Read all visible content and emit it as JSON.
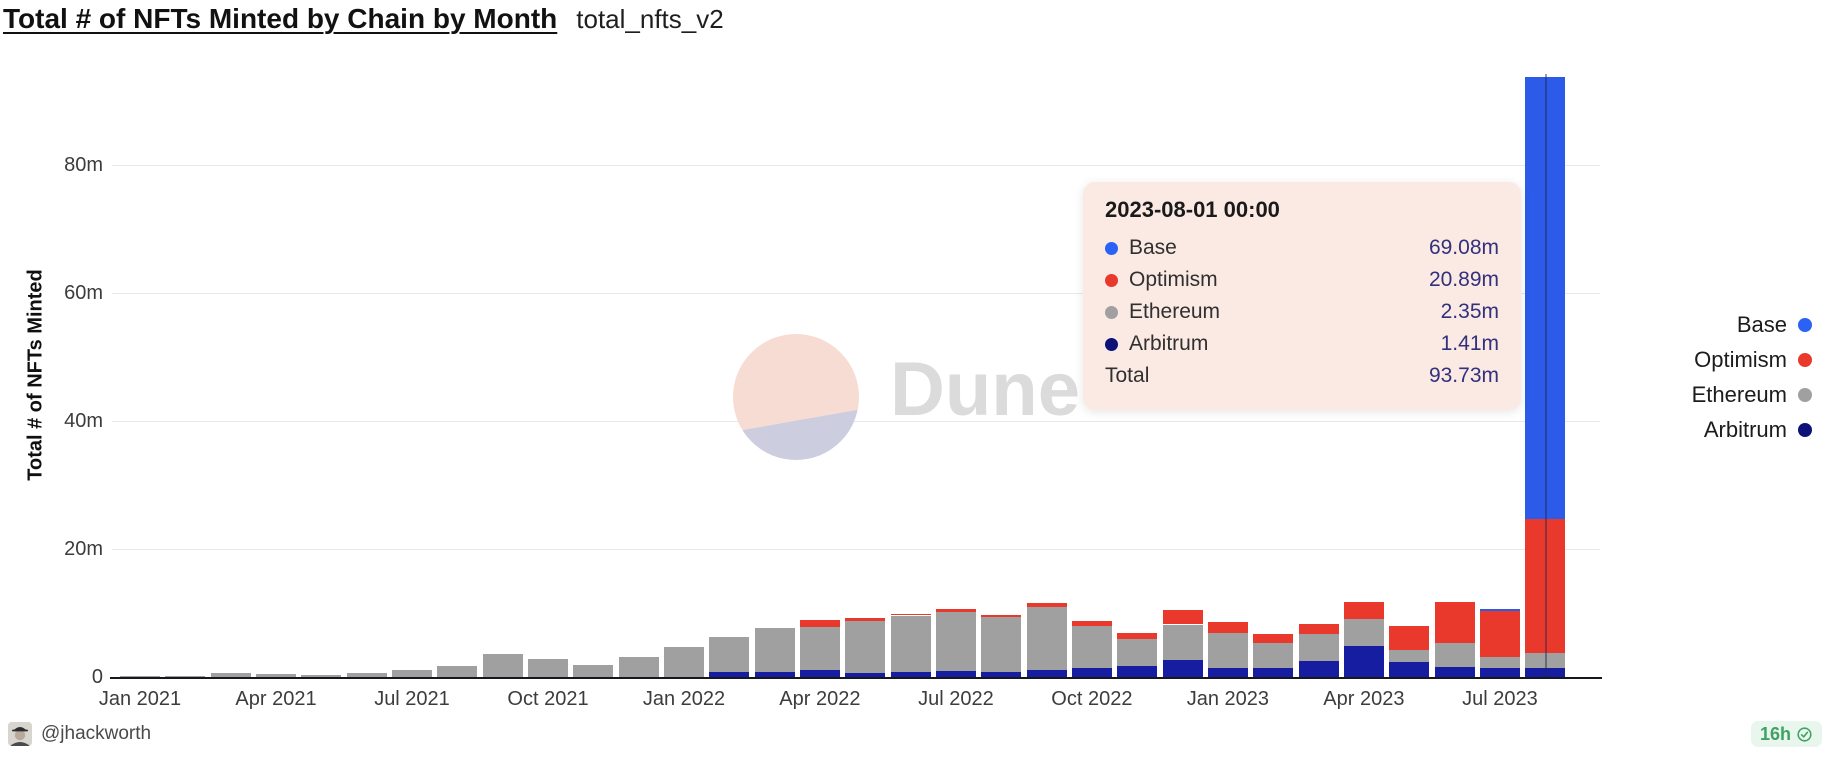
{
  "header": {
    "title": "Total # of NFTs Minted by Chain by Month",
    "query_name": "total_nfts_v2"
  },
  "chart_data": {
    "type": "bar",
    "stacked": true,
    "title": "Total # of NFTs Minted by Chain by Month",
    "ylabel": "Total # of NFTs Minted",
    "unit": "millions",
    "ylim_m": [
      0,
      96
    ],
    "y_ticks": [
      {
        "value_m": 0,
        "label": "0"
      },
      {
        "value_m": 20,
        "label": "20m"
      },
      {
        "value_m": 40,
        "label": "40m"
      },
      {
        "value_m": 60,
        "label": "60m"
      },
      {
        "value_m": 80,
        "label": "80m"
      }
    ],
    "x_tick_labels": [
      "Jan 2021",
      "Apr 2021",
      "Jul 2021",
      "Oct 2021",
      "Jan 2022",
      "Apr 2022",
      "Jul 2022",
      "Oct 2022",
      "Jan 2023",
      "Apr 2023",
      "Jul 2023"
    ],
    "categories": [
      "Jan 2021",
      "Feb 2021",
      "Mar 2021",
      "Apr 2021",
      "May 2021",
      "Jun 2021",
      "Jul 2021",
      "Aug 2021",
      "Sep 2021",
      "Oct 2021",
      "Nov 2021",
      "Dec 2021",
      "Jan 2022",
      "Feb 2022",
      "Mar 2022",
      "Apr 2022",
      "May 2022",
      "Jun 2022",
      "Jul 2022",
      "Aug 2022",
      "Sep 2022",
      "Oct 2022",
      "Nov 2022",
      "Dec 2022",
      "Jan 2023",
      "Feb 2023",
      "Mar 2023",
      "Apr 2023",
      "May 2023",
      "Jun 2023",
      "Jul 2023",
      "Aug 2023"
    ],
    "stack_order_bottom_to_top": [
      "Arbitrum",
      "Ethereum",
      "Optimism",
      "Base"
    ],
    "series": [
      {
        "name": "Arbitrum",
        "color": "#161da0",
        "dot_color": "#0c1277",
        "values_m": [
          0,
          0,
          0,
          0,
          0,
          0,
          0,
          0,
          0,
          0,
          0,
          0,
          0,
          0.8,
          0.8,
          1.1,
          0.6,
          0.8,
          0.9,
          0.8,
          1.1,
          1.4,
          1.7,
          2.7,
          1.4,
          1.4,
          2.5,
          4.9,
          2.3,
          1.6,
          1.4,
          1.41
        ]
      },
      {
        "name": "Ethereum",
        "color": "#a0a0a0",
        "dot_color": "#a0a0a0",
        "values_m": [
          0.2,
          0.2,
          0.7,
          0.5,
          0.35,
          0.7,
          1.05,
          1.8,
          3.6,
          2.8,
          1.9,
          3.2,
          4.7,
          5.5,
          6.9,
          6.7,
          8.1,
          8.8,
          9.2,
          8.6,
          9.9,
          6.5,
          4.3,
          5.5,
          5.5,
          3.9,
          4.2,
          4.2,
          1.9,
          3.8,
          1.7,
          2.35
        ]
      },
      {
        "name": "Optimism",
        "color": "#e8392c",
        "dot_color": "#e8392c",
        "values_m": [
          0,
          0,
          0,
          0,
          0,
          0,
          0,
          0,
          0,
          0,
          0,
          0,
          0,
          0,
          0,
          1.1,
          0.5,
          0.3,
          0.5,
          0.3,
          0.6,
          0.9,
          0.9,
          2.2,
          1.7,
          1.4,
          1.6,
          2.7,
          3.8,
          6.4,
          7.2,
          20.89
        ]
      },
      {
        "name": "Base",
        "color": "#2b5be8",
        "dot_color": "#2a62f6",
        "values_m": [
          0,
          0,
          0,
          0,
          0,
          0,
          0,
          0,
          0,
          0,
          0,
          0,
          0,
          0,
          0,
          0,
          0,
          0,
          0,
          0,
          0,
          0,
          0,
          0,
          0,
          0,
          0,
          0,
          0,
          0,
          0.3,
          69.08
        ]
      }
    ],
    "legend_position": "right",
    "grid": "horizontal"
  },
  "legend": {
    "items": [
      {
        "label": "Base",
        "color": "#2a62f6"
      },
      {
        "label": "Optimism",
        "color": "#e8392c"
      },
      {
        "label": "Ethereum",
        "color": "#a0a0a0"
      },
      {
        "label": "Arbitrum",
        "color": "#0c1277"
      }
    ]
  },
  "tooltip": {
    "title": "2023-08-01 00:00",
    "rows": [
      {
        "label": "Base",
        "value": "69.08m",
        "color": "#2a62f6"
      },
      {
        "label": "Optimism",
        "value": "20.89m",
        "color": "#e8392c"
      },
      {
        "label": "Ethereum",
        "value": "2.35m",
        "color": "#a0a0a0"
      },
      {
        "label": "Arbitrum",
        "value": "1.41m",
        "color": "#0c1277"
      }
    ],
    "total": {
      "label": "Total",
      "value": "93.73m"
    },
    "hover_month": "Aug 2023"
  },
  "watermark": {
    "text": "Dune"
  },
  "footer": {
    "author": "@jhackworth",
    "badge_label": "16h",
    "badge_color": "#3ea262"
  }
}
